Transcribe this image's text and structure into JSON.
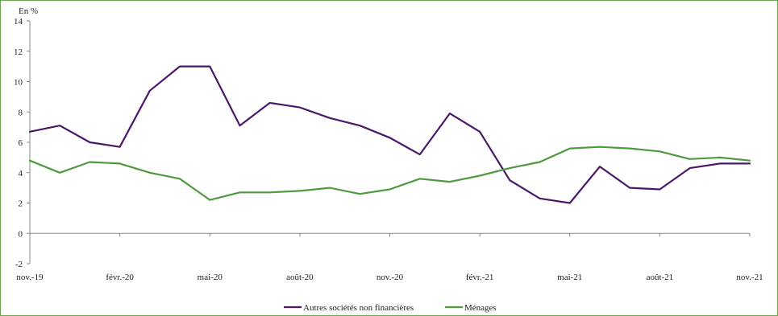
{
  "chart_data": {
    "type": "line",
    "ylabel": "En %",
    "ylim": [
      -2,
      14
    ],
    "yticks": [
      -2,
      0,
      2,
      4,
      6,
      8,
      10,
      12,
      14
    ],
    "x": [
      "nov.-19",
      "déc.-19",
      "janv.-20",
      "févr.-20",
      "mars-20",
      "avr.-20",
      "mai-20",
      "juin-20",
      "juil.-20",
      "août-20",
      "sept.-20",
      "oct.-20",
      "nov.-20",
      "déc.-20",
      "janv.-21",
      "févr.-21",
      "mars-21",
      "avr.-21",
      "mai-21",
      "juin-21",
      "juil.-21",
      "août-21",
      "sept.-21",
      "oct.-21",
      "nov.-21"
    ],
    "xtick_labels": [
      "nov.-19",
      "févr.-20",
      "mai-20",
      "août-20",
      "nov.-20",
      "févr.-21",
      "mai-21",
      "août-21",
      "nov.-21"
    ],
    "series": [
      {
        "name": "Autres sociétés non financières",
        "color": "#4b1869",
        "values": [
          6.7,
          7.1,
          6.0,
          5.7,
          9.4,
          11.0,
          11.0,
          7.1,
          8.6,
          8.3,
          7.6,
          7.1,
          6.3,
          5.2,
          7.9,
          6.7,
          3.5,
          2.3,
          2.0,
          4.4,
          3.0,
          2.9,
          4.3,
          4.6,
          4.6
        ]
      },
      {
        "name": "Ménages",
        "color": "#4e9a3e",
        "values": [
          4.8,
          4.0,
          4.7,
          4.6,
          4.0,
          3.6,
          2.2,
          2.7,
          2.7,
          2.8,
          3.0,
          2.6,
          2.9,
          3.6,
          3.4,
          3.8,
          4.3,
          4.7,
          5.6,
          5.7,
          5.6,
          5.4,
          4.9,
          5.0,
          4.8
        ]
      }
    ],
    "legend_position": "bottom-center",
    "grid": false
  }
}
